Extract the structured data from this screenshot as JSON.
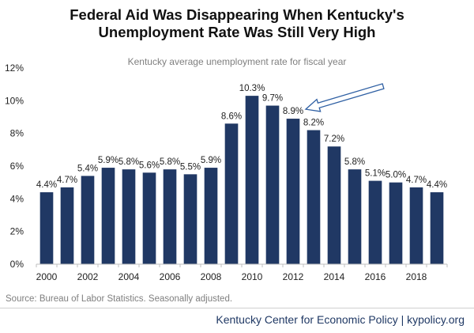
{
  "header": {
    "title_line1": "Federal Aid Was Disappearing When Kentucky's",
    "title_line2": "Unemployment Rate Was Still Very High",
    "subtitle": "Kentucky average unemployment rate for fiscal year"
  },
  "source": "Source: Bureau of Labor Statistics. Seasonally adjusted.",
  "footer": "Kentucky Center for Economic Policy | kypolicy.org",
  "colors": {
    "bar": "#203864",
    "arrow": "#2e5fa3",
    "gridline": "#d9d9d9"
  },
  "chart_data": {
    "type": "bar",
    "categories": [
      "2000",
      "2001",
      "2002",
      "2003",
      "2004",
      "2005",
      "2006",
      "2007",
      "2008",
      "2009",
      "2010",
      "2011",
      "2012",
      "2013",
      "2014",
      "2015",
      "2016",
      "2017",
      "2018",
      "2019"
    ],
    "values": [
      4.4,
      4.7,
      5.4,
      5.9,
      5.8,
      5.6,
      5.8,
      5.5,
      5.9,
      8.6,
      10.3,
      9.7,
      8.9,
      8.2,
      7.2,
      5.8,
      5.1,
      5.0,
      4.7,
      4.4
    ],
    "data_labels": [
      "4.4%",
      "4.7%",
      "5.4%",
      "5.9%",
      "5.8%",
      "5.6%",
      "5.8%",
      "5.5%",
      "5.9%",
      "8.6%",
      "10.3%",
      "9.7%",
      "8.9%",
      "8.2%",
      "7.2%",
      "5.8%",
      "5.1%",
      "5.0%",
      "4.7%",
      "4.4%"
    ],
    "x_tick_labels": [
      "2000",
      "2002",
      "2004",
      "2006",
      "2008",
      "2010",
      "2012",
      "2014",
      "2016",
      "2018"
    ],
    "y_tick_labels": [
      "0%",
      "2%",
      "4%",
      "6%",
      "8%",
      "10%",
      "12%"
    ],
    "ylim": [
      0,
      12
    ],
    "y_ticks": [
      0,
      2,
      4,
      6,
      8,
      10,
      12
    ],
    "grid": false,
    "annotation": {
      "type": "arrow",
      "points_to": "2012"
    }
  }
}
